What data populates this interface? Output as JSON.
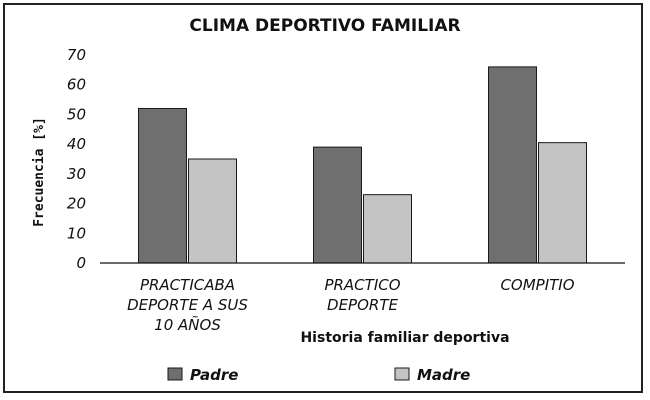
{
  "chart_data": {
    "type": "bar",
    "title": "CLIMA DEPORTIVO FAMILIAR",
    "xlabel": "Historia familiar deportiva",
    "ylabel": "Frecuencia [%]",
    "ylim": [
      0,
      70
    ],
    "yticks": [
      0,
      10,
      20,
      30,
      40,
      50,
      60,
      70
    ],
    "categories": [
      [
        "PRACTICABA",
        "DEPORTE A SUS",
        "10 AÑOS"
      ],
      [
        "PRACTICO",
        "DEPORTE"
      ],
      [
        "COMPITIO"
      ]
    ],
    "series": [
      {
        "name": "Padre",
        "color": "#6f6f6f",
        "values": [
          52,
          39,
          66
        ]
      },
      {
        "name": "Madre",
        "color": "#c4c4c4",
        "values": [
          35,
          23,
          40.5
        ]
      }
    ],
    "grid": false,
    "legend": "bottom"
  }
}
